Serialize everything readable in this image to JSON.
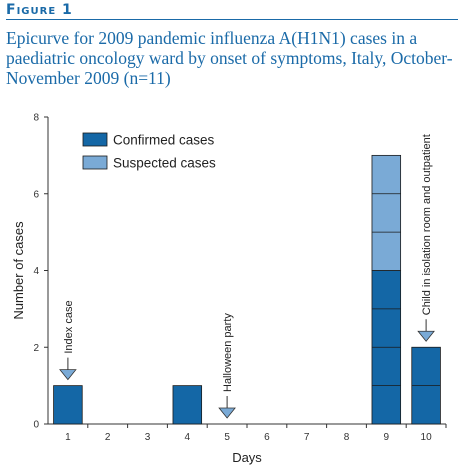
{
  "figure_label": "Figure 1",
  "title": "Epicurve for 2009 pandemic influenza A(H1N1) cases in a paediatric oncology ward by onset of symptoms, Italy, October-November 2009 (n=11)",
  "colors": {
    "confirmed": "#1467a6",
    "suspected": "#7aaad6",
    "accent": "#1a6aa8",
    "arrow": "#7aaad6"
  },
  "chart_data": {
    "type": "bar",
    "stacked": true,
    "categories": [
      "1",
      "2",
      "3",
      "4",
      "5",
      "6",
      "7",
      "8",
      "9",
      "10"
    ],
    "series": [
      {
        "name": "Confirmed cases",
        "values": [
          1,
          0,
          0,
          1,
          0,
          0,
          0,
          0,
          4,
          2
        ]
      },
      {
        "name": "Suspected cases",
        "values": [
          0,
          0,
          0,
          0,
          0,
          0,
          0,
          0,
          3,
          0
        ]
      }
    ],
    "xlabel": "Days",
    "ylabel": "Number of cases",
    "ylim": [
      0,
      8
    ],
    "yticks": [
      0,
      2,
      4,
      6,
      8
    ],
    "grid": false,
    "legend_position": "top-left",
    "unit_box_lines": true,
    "annotations": [
      {
        "category": "1",
        "text": "Index case"
      },
      {
        "category": "5",
        "text": "Halloween party"
      },
      {
        "category": "10",
        "text": "Child in isolation room and outpatient"
      }
    ]
  }
}
